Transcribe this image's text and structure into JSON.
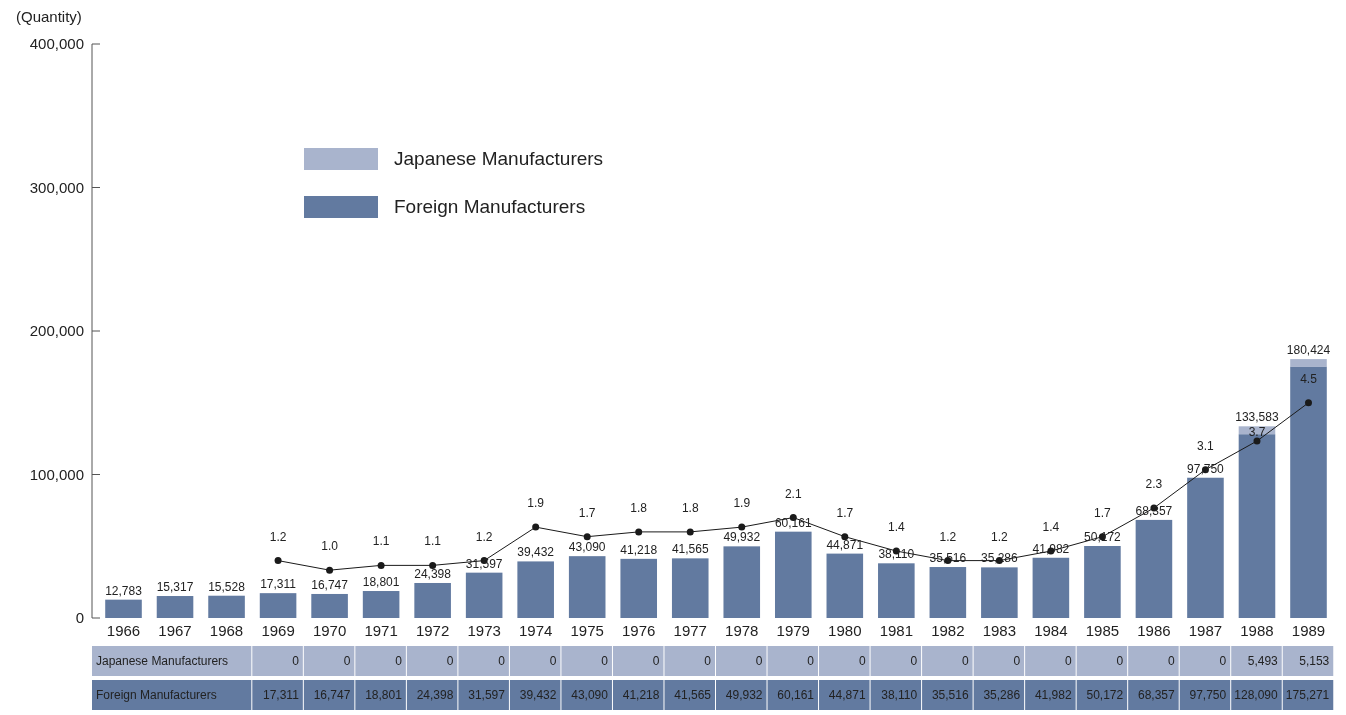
{
  "chart_data": {
    "type": "bar",
    "stacked": true,
    "ylabel": "(Quantity)",
    "categories": [
      "1966",
      "1967",
      "1968",
      "1969",
      "1970",
      "1971",
      "1972",
      "1973",
      "1974",
      "1975",
      "1976",
      "1977",
      "1978",
      "1979",
      "1980",
      "1981",
      "1982",
      "1983",
      "1984",
      "1985",
      "1986",
      "1987",
      "1988",
      "1989"
    ],
    "series": [
      {
        "name": "Foreign Manufacturers",
        "color": "#627aa0",
        "values": [
          12783,
          15317,
          15528,
          17311,
          16747,
          18801,
          24398,
          31597,
          39432,
          43090,
          41218,
          41565,
          49932,
          60161,
          44871,
          38110,
          35516,
          35286,
          41982,
          50172,
          68357,
          97750,
          128090,
          175271
        ],
        "value_labels": [
          null,
          null,
          null,
          "17,311",
          "16,747",
          "18,801",
          "24,398",
          "31,597",
          "39,432",
          "43,090",
          "41,218",
          "41,565",
          "49,932",
          "60,161",
          "44,871",
          "38,110",
          "35,516",
          "35,286",
          "41,982",
          "50,172",
          "68,357",
          "97,750",
          "128,090",
          "175,271"
        ]
      },
      {
        "name": "Japanese Manufacturers",
        "color": "#a9b4cd",
        "values": [
          null,
          null,
          null,
          0,
          0,
          0,
          0,
          0,
          0,
          0,
          0,
          0,
          0,
          0,
          0,
          0,
          0,
          0,
          0,
          0,
          0,
          0,
          5493,
          5153
        ],
        "value_labels": [
          null,
          null,
          null,
          "0",
          "0",
          "0",
          "0",
          "0",
          "0",
          "0",
          "0",
          "0",
          "0",
          "0",
          "0",
          "0",
          "0",
          "0",
          "0",
          "0",
          "0",
          "0",
          "5,493",
          "5,153"
        ]
      },
      {
        "type": "line",
        "axis": "y2",
        "color": "#1a1a1a",
        "values": [
          null,
          null,
          null,
          1.2,
          1.0,
          1.1,
          1.1,
          1.2,
          1.9,
          1.7,
          1.8,
          1.8,
          1.9,
          2.1,
          1.7,
          1.4,
          1.2,
          1.2,
          1.4,
          1.7,
          2.3,
          3.1,
          3.7,
          4.5
        ],
        "value_labels": [
          null,
          null,
          null,
          "1.2",
          "1.0",
          "1.1",
          "1.1",
          "1.2",
          "1.9",
          "1.7",
          "1.8",
          "1.8",
          "1.9",
          "2.1",
          "1.7",
          "1.4",
          "1.2",
          "1.2",
          "1.4",
          "1.7",
          "2.3",
          "3.1",
          "3.7",
          "4.5"
        ]
      }
    ],
    "totals": [
      "12,783",
      "15,317",
      "15,528",
      "17,311",
      "16,747",
      "18,801",
      "24,398",
      "31,597",
      "39,432",
      "43,090",
      "41,218",
      "41,565",
      "49,932",
      "60,161",
      "44,871",
      "38,110",
      "35,516",
      "35,286",
      "41,982",
      "50,172",
      "68,357",
      "97,750",
      "133,583",
      "180,424"
    ],
    "ylim": [
      0,
      400000
    ],
    "yticks": [
      0,
      {
        "value": 100000,
        "label": "100,000"
      },
      {
        "value": 200000,
        "label": "200,000"
      },
      {
        "value": 300000,
        "label": "300,000"
      },
      {
        "value": 400000,
        "label": "400,000"
      }
    ],
    "y2lim": [
      0,
      12
    ],
    "data_labels": true,
    "marker": "circle",
    "legend": "top left",
    "grid": false
  }
}
